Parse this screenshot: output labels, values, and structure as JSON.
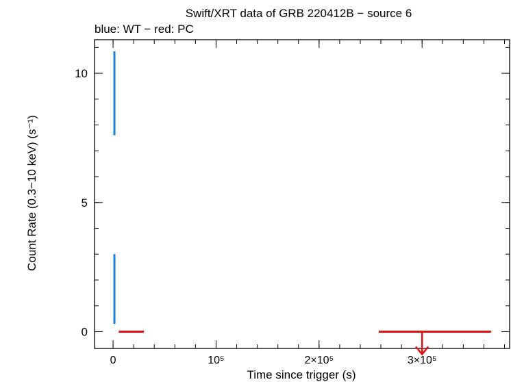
{
  "chart_data": {
    "type": "scatter",
    "title": "Swift/XRT data of GRB 220412B − source 6",
    "subtitle": "blue: WT − red: PC",
    "xlabel": "Time since trigger (s)",
    "ylabel": "Count Rate (0.3−10 keV) (s⁻¹)",
    "xlim": [
      -18000,
      385000
    ],
    "ylim": [
      -0.65,
      11.3
    ],
    "x_ticks": [
      {
        "value": 0,
        "label": "0"
      },
      {
        "value": 100000,
        "label": "10⁵"
      },
      {
        "value": 200000,
        "label": "2×10⁵"
      },
      {
        "value": 300000,
        "label": "3×10⁵"
      }
    ],
    "y_ticks": [
      {
        "value": 0,
        "label": "0"
      },
      {
        "value": 5,
        "label": "5"
      },
      {
        "value": 10,
        "label": "10"
      }
    ],
    "series": [
      {
        "name": "WT",
        "color": "#1a7fe0",
        "points": [
          {
            "x": 1300,
            "y": 9.2,
            "y_low": 7.6,
            "y_high": 10.85
          },
          {
            "x": 1300,
            "y": 1.65,
            "y_low": 0.3,
            "y_high": 3.0
          }
        ]
      },
      {
        "name": "PC",
        "color": "#e01010",
        "points": [
          {
            "x": 18000,
            "x_low": 5500,
            "x_high": 30000,
            "y": 0.0
          },
          {
            "x": 300000,
            "x_low": 258000,
            "x_high": 367000,
            "y": 0.0,
            "upper_limit": true
          }
        ]
      }
    ]
  }
}
